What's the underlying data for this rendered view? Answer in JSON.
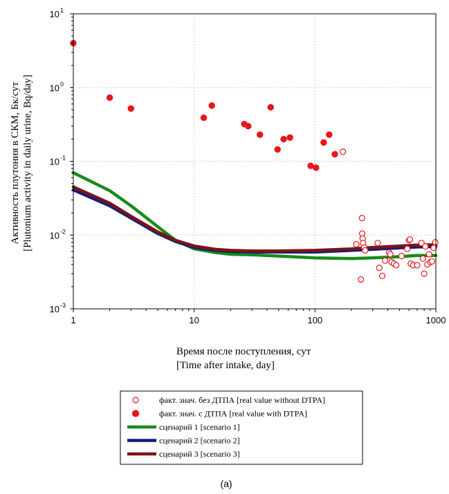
{
  "chart_data": {
    "type": "scatter",
    "xscale": "log",
    "yscale": "log",
    "xlim": [
      1,
      1000
    ],
    "ylim": [
      0.001,
      10
    ],
    "grid": true,
    "legend_position": "bottom",
    "xlabel_lines": [
      "Время после поступления, сут",
      "[Time after intake, day]"
    ],
    "ylabel_lines": [
      "Активность плутония в СКМ, Бк/сут",
      "[Plutonium activity in daily urine, Bq/day]"
    ],
    "x_ticks": [
      {
        "value": 1,
        "label": "1"
      },
      {
        "value": 10,
        "label": "10"
      },
      {
        "value": 100,
        "label": "100"
      },
      {
        "value": 1000,
        "label": "1000"
      }
    ],
    "y_ticks": [
      {
        "value": 0.001,
        "base": "10",
        "exp": "-3"
      },
      {
        "value": 0.01,
        "base": "10",
        "exp": "-2"
      },
      {
        "value": 0.1,
        "base": "10",
        "exp": "-1"
      },
      {
        "value": 1,
        "base": "10",
        "exp": "0"
      },
      {
        "value": 10,
        "base": "10",
        "exp": "1"
      }
    ],
    "series": [
      {
        "name": "факт. знач. без ДТПА [real value without DTPA]",
        "kind": "scatter-open",
        "color": "#e8171c",
        "points": [
          [
            170,
            0.135
          ],
          [
            220,
            0.0075
          ],
          [
            240,
            0.0025
          ],
          [
            245,
            0.017
          ],
          [
            246,
            0.0105
          ],
          [
            248,
            0.009
          ],
          [
            250,
            0.0078
          ],
          [
            255,
            0.0068
          ],
          [
            260,
            0.0062
          ],
          [
            330,
            0.0078
          ],
          [
            340,
            0.0036
          ],
          [
            360,
            0.0028
          ],
          [
            380,
            0.0045
          ],
          [
            410,
            0.0058
          ],
          [
            420,
            0.0055
          ],
          [
            430,
            0.0043
          ],
          [
            450,
            0.0041
          ],
          [
            470,
            0.0039
          ],
          [
            520,
            0.0052
          ],
          [
            580,
            0.0065
          ],
          [
            600,
            0.0085
          ],
          [
            610,
            0.0087
          ],
          [
            620,
            0.0041
          ],
          [
            650,
            0.0039
          ],
          [
            700,
            0.0039
          ],
          [
            760,
            0.0078
          ],
          [
            780,
            0.0048
          ],
          [
            800,
            0.003
          ],
          [
            820,
            0.007
          ],
          [
            850,
            0.004
          ],
          [
            880,
            0.0055
          ],
          [
            900,
            0.0043
          ],
          [
            930,
            0.0044
          ],
          [
            960,
            0.0067
          ],
          [
            990,
            0.008
          ]
        ]
      },
      {
        "name": "факт. знач. с ДТПА [real value with DTPA]",
        "kind": "scatter-filled",
        "color": "#e8171c",
        "points": [
          [
            1,
            4.0
          ],
          [
            2,
            0.73
          ],
          [
            3,
            0.52
          ],
          [
            12,
            0.39
          ],
          [
            14,
            0.57
          ],
          [
            26,
            0.32
          ],
          [
            28,
            0.3
          ],
          [
            35,
            0.23
          ],
          [
            43,
            0.54
          ],
          [
            49,
            0.145
          ],
          [
            55,
            0.2
          ],
          [
            62,
            0.21
          ],
          [
            92,
            0.087
          ],
          [
            102,
            0.082
          ],
          [
            118,
            0.18
          ],
          [
            131,
            0.23
          ],
          [
            146,
            0.125
          ]
        ]
      },
      {
        "name": "сценарий 1 [scenario 1]",
        "kind": "line",
        "color": "#158c1b",
        "points": [
          [
            1,
            0.07
          ],
          [
            2,
            0.04
          ],
          [
            3,
            0.025
          ],
          [
            5,
            0.013
          ],
          [
            7,
            0.0085
          ],
          [
            10,
            0.0065
          ],
          [
            15,
            0.0058
          ],
          [
            20,
            0.0055
          ],
          [
            30,
            0.0054
          ],
          [
            50,
            0.0052
          ],
          [
            100,
            0.0049
          ],
          [
            200,
            0.0048
          ],
          [
            300,
            0.0049
          ],
          [
            500,
            0.0051
          ],
          [
            700,
            0.0053
          ],
          [
            1000,
            0.0053
          ]
        ]
      },
      {
        "name": "сценарий 2 [scenario 2]",
        "kind": "line",
        "color": "#0f1e7a",
        "points": [
          [
            1,
            0.041
          ],
          [
            2,
            0.025
          ],
          [
            3,
            0.017
          ],
          [
            5,
            0.0105
          ],
          [
            7,
            0.0082
          ],
          [
            10,
            0.0068
          ],
          [
            15,
            0.0062
          ],
          [
            20,
            0.006
          ],
          [
            30,
            0.0059
          ],
          [
            50,
            0.0059
          ],
          [
            100,
            0.0059
          ],
          [
            200,
            0.0062
          ],
          [
            300,
            0.0064
          ],
          [
            500,
            0.0067
          ],
          [
            700,
            0.0069
          ],
          [
            1000,
            0.007
          ]
        ]
      },
      {
        "name": "сценарий 3 [scenario 3]",
        "kind": "line",
        "color": "#7a1418",
        "points": [
          [
            1,
            0.045
          ],
          [
            2,
            0.027
          ],
          [
            3,
            0.018
          ],
          [
            5,
            0.011
          ],
          [
            7,
            0.0085
          ],
          [
            10,
            0.0071
          ],
          [
            15,
            0.0064
          ],
          [
            20,
            0.0062
          ],
          [
            30,
            0.0061
          ],
          [
            50,
            0.0061
          ],
          [
            100,
            0.0062
          ],
          [
            200,
            0.0065
          ],
          [
            300,
            0.0068
          ],
          [
            500,
            0.0071
          ],
          [
            700,
            0.0073
          ],
          [
            1000,
            0.0074
          ]
        ]
      }
    ]
  },
  "caption": "(a)"
}
